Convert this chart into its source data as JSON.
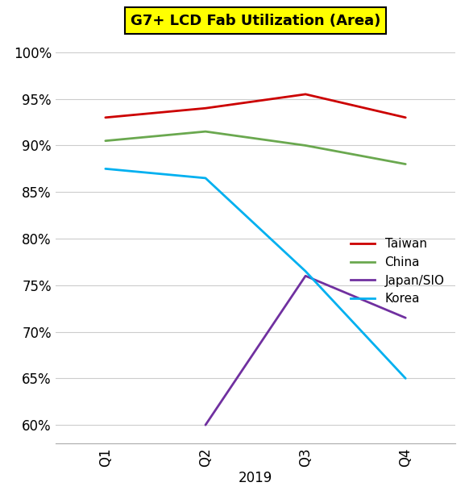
{
  "title": "G7+ LCD Fab Utilization (Area)",
  "title_bg_color": "#FFFF00",
  "quarters": [
    "Q1",
    "Q2",
    "Q3",
    "Q4"
  ],
  "xlabel": "2019",
  "series": {
    "Taiwan": {
      "values": [
        93.0,
        94.0,
        95.5,
        93.0
      ],
      "color": "#cc0000"
    },
    "China": {
      "values": [
        90.5,
        91.5,
        90.0,
        88.0
      ],
      "color": "#6aa84f"
    },
    "Japan/SIO": {
      "values": [
        null,
        60.0,
        76.0,
        71.5
      ],
      "color": "#7030a0"
    },
    "Korea": {
      "values": [
        87.5,
        86.5,
        76.5,
        65.0
      ],
      "color": "#00b0f0"
    }
  },
  "ylim": [
    58,
    102
  ],
  "yticks": [
    60,
    65,
    70,
    75,
    80,
    85,
    90,
    95,
    100
  ],
  "background_color": "#ffffff",
  "grid_color": "#cccccc",
  "linewidth": 2.0,
  "tick_fontsize": 12,
  "xlabel_fontsize": 12,
  "legend_fontsize": 11
}
